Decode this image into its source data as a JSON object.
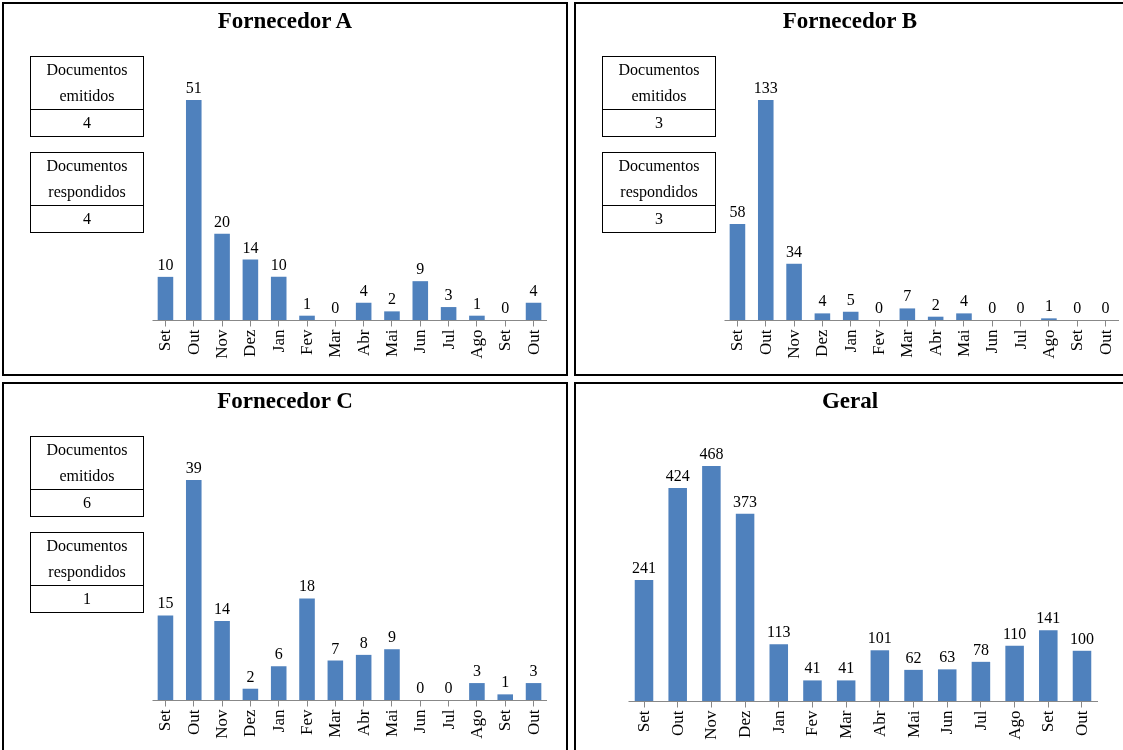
{
  "chart_data": [
    {
      "type": "bar",
      "title": "Fornecedor A",
      "categories": [
        "Set",
        "Out",
        "Nov",
        "Dez",
        "Jan",
        "Fev",
        "Mar",
        "Abr",
        "Mai",
        "Jun",
        "Jul",
        "Ago",
        "Set",
        "Out"
      ],
      "values": [
        10,
        51,
        20,
        14,
        10,
        1,
        0,
        4,
        2,
        9,
        3,
        1,
        0,
        4
      ],
      "color": "#4f81bd",
      "data_labels": true,
      "tick_labels": "x",
      "annotations": [
        "Documentos emitidos",
        "4",
        "Documentos respondidos",
        "4"
      ]
    },
    {
      "type": "bar",
      "title": "Fornecedor B",
      "categories": [
        "Set",
        "Out",
        "Nov",
        "Dez",
        "Jan",
        "Fev",
        "Mar",
        "Abr",
        "Mai",
        "Jun",
        "Jul",
        "Ago",
        "Set",
        "Out"
      ],
      "values": [
        58,
        133,
        34,
        4,
        5,
        0,
        7,
        2,
        4,
        0,
        0,
        1,
        0,
        0
      ],
      "color": "#4f81bd",
      "data_labels": true,
      "tick_labels": "x",
      "annotations": [
        "Documentos emitidos",
        "3",
        "Documentos respondidos",
        "3"
      ]
    },
    {
      "type": "bar",
      "title": "Fornecedor C",
      "categories": [
        "Set",
        "Out",
        "Nov",
        "Dez",
        "Jan",
        "Fev",
        "Mar",
        "Abr",
        "Mai",
        "Jun",
        "Jul",
        "Ago",
        "Set",
        "Out"
      ],
      "values": [
        15,
        39,
        14,
        2,
        6,
        18,
        7,
        8,
        9,
        0,
        0,
        3,
        1,
        3
      ],
      "color": "#4f81bd",
      "data_labels": true,
      "tick_labels": "x",
      "annotations": [
        "Documentos emitidos",
        "6",
        "Documentos respondidos",
        "1"
      ]
    },
    {
      "type": "bar",
      "title": "Geral",
      "categories": [
        "Set",
        "Out",
        "Nov",
        "Dez",
        "Jan",
        "Fev",
        "Mar",
        "Abr",
        "Mai",
        "Jun",
        "Jul",
        "Ago",
        "Set",
        "Out"
      ],
      "values": [
        241,
        424,
        468,
        373,
        113,
        41,
        41,
        101,
        62,
        63,
        78,
        110,
        141,
        100
      ],
      "color": "#4f81bd",
      "data_labels": true,
      "tick_labels": "x"
    }
  ]
}
